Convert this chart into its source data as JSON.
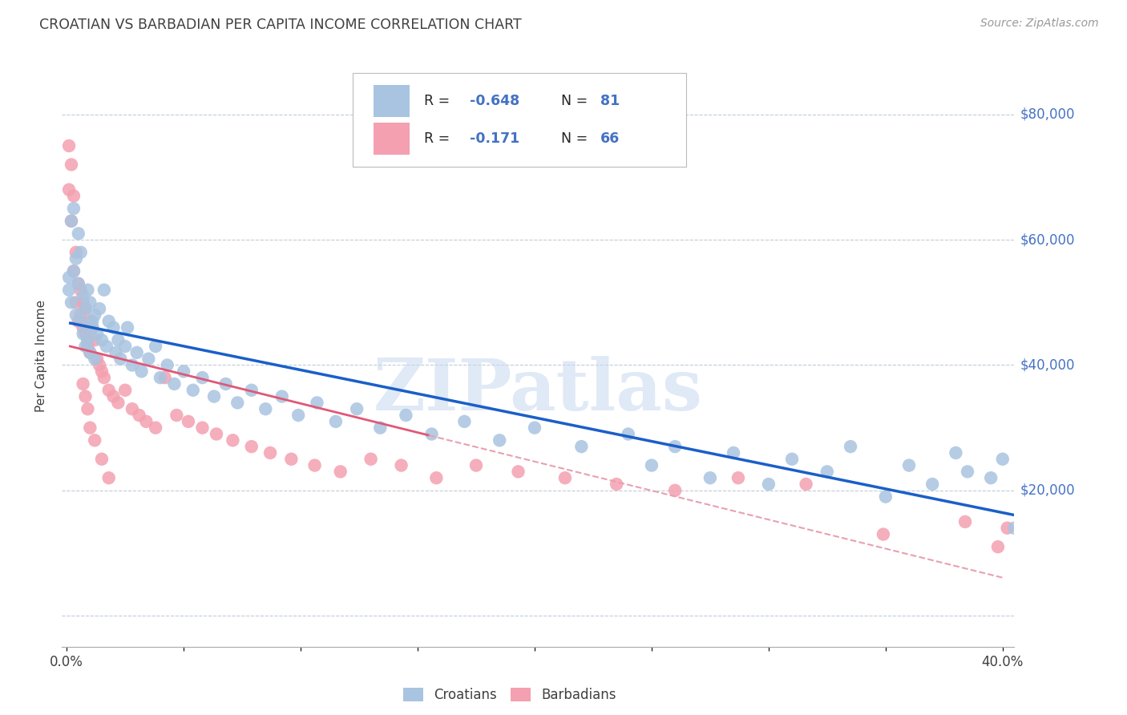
{
  "title": "CROATIAN VS BARBADIAN PER CAPITA INCOME CORRELATION CHART",
  "source": "Source: ZipAtlas.com",
  "ylabel": "Per Capita Income",
  "xlim": [
    -0.002,
    0.405
  ],
  "ylim": [
    -5000,
    88000
  ],
  "yticks": [
    0,
    20000,
    40000,
    60000,
    80000
  ],
  "xticks": [
    0.0,
    0.05,
    0.1,
    0.15,
    0.2,
    0.25,
    0.3,
    0.35,
    0.4
  ],
  "croatian_scatter_color": "#a8c4e0",
  "barbadian_scatter_color": "#f4a0b0",
  "trend_croatian_color": "#1a5fc8",
  "trend_barbadian_solid_color": "#e05878",
  "trend_barbadian_dash_color": "#e8a0b0",
  "watermark": "ZIPatlas",
  "watermark_color": "#c8d8f0",
  "background_color": "#ffffff",
  "grid_color": "#c0ccd8",
  "title_color": "#404040",
  "ytick_color": "#4472c4",
  "legend_value_color": "#4472c4",
  "croatians_x": [
    0.001,
    0.001,
    0.002,
    0.002,
    0.003,
    0.003,
    0.004,
    0.004,
    0.005,
    0.005,
    0.006,
    0.006,
    0.007,
    0.007,
    0.008,
    0.008,
    0.009,
    0.009,
    0.01,
    0.01,
    0.011,
    0.011,
    0.012,
    0.012,
    0.013,
    0.014,
    0.015,
    0.016,
    0.017,
    0.018,
    0.02,
    0.021,
    0.022,
    0.023,
    0.025,
    0.026,
    0.028,
    0.03,
    0.032,
    0.035,
    0.038,
    0.04,
    0.043,
    0.046,
    0.05,
    0.054,
    0.058,
    0.063,
    0.068,
    0.073,
    0.079,
    0.085,
    0.092,
    0.099,
    0.107,
    0.115,
    0.124,
    0.134,
    0.145,
    0.156,
    0.17,
    0.185,
    0.2,
    0.22,
    0.24,
    0.26,
    0.285,
    0.31,
    0.335,
    0.36,
    0.38,
    0.395,
    0.4,
    0.405,
    0.385,
    0.37,
    0.35,
    0.325,
    0.3,
    0.275,
    0.25
  ],
  "croatians_y": [
    54000,
    52000,
    63000,
    50000,
    65000,
    55000,
    57000,
    48000,
    53000,
    61000,
    58000,
    47000,
    51000,
    45000,
    49000,
    43000,
    52000,
    44000,
    50000,
    42000,
    47000,
    46000,
    48000,
    41000,
    45000,
    49000,
    44000,
    52000,
    43000,
    47000,
    46000,
    42000,
    44000,
    41000,
    43000,
    46000,
    40000,
    42000,
    39000,
    41000,
    43000,
    38000,
    40000,
    37000,
    39000,
    36000,
    38000,
    35000,
    37000,
    34000,
    36000,
    33000,
    35000,
    32000,
    34000,
    31000,
    33000,
    30000,
    32000,
    29000,
    31000,
    28000,
    30000,
    27000,
    29000,
    27000,
    26000,
    25000,
    27000,
    24000,
    26000,
    22000,
    25000,
    14000,
    23000,
    21000,
    19000,
    23000,
    21000,
    22000,
    24000
  ],
  "barbadians_x": [
    0.001,
    0.001,
    0.002,
    0.002,
    0.003,
    0.003,
    0.004,
    0.004,
    0.005,
    0.005,
    0.006,
    0.006,
    0.007,
    0.007,
    0.008,
    0.008,
    0.009,
    0.009,
    0.01,
    0.01,
    0.011,
    0.012,
    0.013,
    0.014,
    0.015,
    0.016,
    0.018,
    0.02,
    0.022,
    0.025,
    0.028,
    0.031,
    0.034,
    0.038,
    0.042,
    0.047,
    0.052,
    0.058,
    0.064,
    0.071,
    0.079,
    0.087,
    0.096,
    0.106,
    0.117,
    0.13,
    0.143,
    0.158,
    0.175,
    0.193,
    0.213,
    0.235,
    0.26,
    0.287,
    0.316,
    0.349,
    0.384,
    0.398,
    0.402,
    0.007,
    0.008,
    0.009,
    0.01,
    0.012,
    0.015,
    0.018
  ],
  "barbadians_y": [
    75000,
    68000,
    72000,
    63000,
    67000,
    55000,
    58000,
    50000,
    53000,
    47000,
    48000,
    52000,
    50000,
    46000,
    45000,
    49000,
    44000,
    43000,
    47000,
    42000,
    46000,
    44000,
    41000,
    40000,
    39000,
    38000,
    36000,
    35000,
    34000,
    36000,
    33000,
    32000,
    31000,
    30000,
    38000,
    32000,
    31000,
    30000,
    29000,
    28000,
    27000,
    26000,
    25000,
    24000,
    23000,
    25000,
    24000,
    22000,
    24000,
    23000,
    22000,
    21000,
    20000,
    22000,
    21000,
    13000,
    15000,
    11000,
    14000,
    37000,
    35000,
    33000,
    30000,
    28000,
    25000,
    22000
  ],
  "barb_trend_solid_xmax": 0.155,
  "barb_trend_dash_xstart": 0.155
}
